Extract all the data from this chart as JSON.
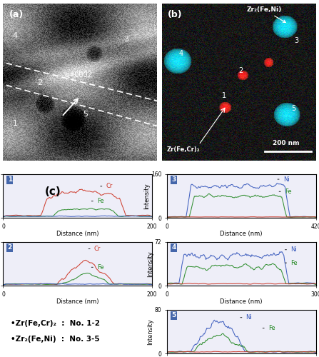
{
  "fig_width": 4.47,
  "fig_height": 5.0,
  "dpi": 100,
  "background_color": "#ffffff",
  "panel_a_label": "(a)",
  "panel_b_label": "(b)",
  "panel_c_label": "(c)",
  "legend_text_line1": "•Zr(Fe,Cr)₂  :  No. 1-2",
  "legend_text_line2": "•Zr₂(Fe,Ni)  :  No. 3-5",
  "plot_bg_color": "#eeeef8",
  "grid_color": "#ccccdd",
  "panel_number_bg": "#4466aa"
}
